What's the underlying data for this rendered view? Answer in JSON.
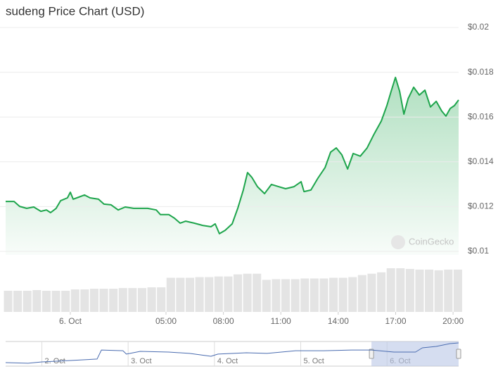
{
  "chart_data": [
    {
      "type": "line",
      "title": "sudeng Price Chart (USD)",
      "watermark": "CoinGecko",
      "color": "#1ea54c",
      "grid": true,
      "x": [
        -3.38,
        -2.94,
        -2.65,
        -2.28,
        -1.91,
        -1.54,
        -1.25,
        -1.03,
        -0.74,
        -0.51,
        -0.15,
        0,
        0.15,
        0.44,
        0.74,
        1.03,
        1.47,
        1.76,
        2.13,
        2.5,
        2.87,
        3.31,
        4.04,
        4.49,
        4.71,
        5.15,
        5.44,
        5.74,
        6.03,
        6.47,
        6.91,
        7.35,
        7.57,
        7.79,
        8.09,
        8.46,
        8.75,
        9.04,
        9.26,
        9.49,
        9.78,
        10.15,
        10.51,
        10.88,
        11.25,
        11.69,
        12.06,
        12.21,
        12.57,
        12.94,
        13.31,
        13.6,
        13.9,
        14.19,
        14.49,
        14.78,
        15.15,
        15.51,
        15.88,
        16.25,
        16.54,
        16.76,
        16.99,
        17.21,
        17.43,
        17.65,
        17.94,
        18.24,
        18.53,
        18.82,
        19.12,
        19.41,
        19.63,
        19.85,
        20.07,
        20.29
      ],
      "values": [
        0.01223,
        0.01223,
        0.01201,
        0.01192,
        0.01198,
        0.01179,
        0.01185,
        0.01173,
        0.01192,
        0.01226,
        0.01239,
        0.01264,
        0.01233,
        0.01242,
        0.01252,
        0.01239,
        0.01233,
        0.01211,
        0.01208,
        0.01185,
        0.01198,
        0.01192,
        0.01192,
        0.01185,
        0.01164,
        0.01164,
        0.01148,
        0.01126,
        0.01135,
        0.01126,
        0.01116,
        0.0111,
        0.01123,
        0.01079,
        0.01094,
        0.01123,
        0.01192,
        0.01274,
        0.01352,
        0.0133,
        0.01289,
        0.01258,
        0.01299,
        0.01289,
        0.0128,
        0.01289,
        0.01311,
        0.01267,
        0.01274,
        0.01327,
        0.01374,
        0.01443,
        0.01462,
        0.01431,
        0.01368,
        0.01437,
        0.01425,
        0.01462,
        0.01525,
        0.01582,
        0.01651,
        0.01714,
        0.01777,
        0.01714,
        0.01613,
        0.01682,
        0.01733,
        0.01698,
        0.0172,
        0.01645,
        0.0167,
        0.01626,
        0.01604,
        0.01638,
        0.01651,
        0.01676
      ],
      "xlim": [
        -3.38,
        20.29
      ],
      "xticks": [
        {
          "value": 0,
          "label": "6. Oct"
        },
        {
          "value": 5,
          "label": "05:00"
        },
        {
          "value": 8,
          "label": "08:00"
        },
        {
          "value": 11,
          "label": "11:00"
        },
        {
          "value": 14,
          "label": "14:00"
        },
        {
          "value": 17,
          "label": "17:00"
        },
        {
          "value": 20,
          "label": "20:00"
        }
      ],
      "ylim": [
        0.01,
        0.02
      ],
      "yticks": [
        {
          "value": 0.01,
          "label": "$0.01"
        },
        {
          "value": 0.012,
          "label": "$0.012"
        },
        {
          "value": 0.014,
          "label": "$0.014"
        },
        {
          "value": 0.016,
          "label": "$0.016"
        },
        {
          "value": 0.018,
          "label": "$0.018"
        },
        {
          "value": 0.02,
          "label": "$0.02"
        }
      ]
    },
    {
      "type": "bar",
      "color": "#e4e4e4",
      "x": [
        -3.25,
        -2.75,
        -2.25,
        -1.75,
        -1.25,
        -0.75,
        -0.25,
        0.25,
        0.75,
        1.25,
        1.75,
        2.25,
        2.75,
        3.25,
        3.75,
        4.25,
        4.75,
        5.25,
        5.75,
        6.25,
        6.75,
        7.25,
        7.75,
        8.25,
        8.75,
        9.25,
        9.75,
        10.25,
        10.75,
        11.25,
        11.75,
        12.25,
        12.75,
        13.25,
        13.75,
        14.25,
        14.75,
        15.25,
        15.75,
        16.25,
        16.75,
        17.25,
        17.75,
        18.25,
        18.75,
        19.25,
        19.75,
        20.25
      ],
      "values": [
        31,
        31,
        31,
        32,
        31,
        31,
        31,
        33,
        33,
        34,
        34,
        34,
        35,
        35,
        35,
        36,
        36,
        50,
        50,
        50,
        51,
        51,
        52,
        52,
        55,
        56,
        56,
        47,
        48,
        48,
        48,
        49,
        49,
        49,
        50,
        50,
        51,
        54,
        56,
        58,
        64,
        64,
        63,
        62,
        62,
        61,
        62,
        62
      ],
      "xlim": [
        -3.38,
        20.29
      ],
      "ylim": [
        0,
        65
      ]
    },
    {
      "type": "line",
      "color": "#4a6cb0",
      "selected_range": [
        3.82,
        4.83
      ],
      "x": [
        -0.42,
        -0.16,
        0,
        0.33,
        0.64,
        0.69,
        0.94,
        0.98,
        1.14,
        1.47,
        1.71,
        1.96,
        2.04,
        2.37,
        2.61,
        2.94,
        3.27,
        3.59,
        3.82,
        4.08,
        4.33,
        4.41,
        4.57,
        4.73,
        4.83
      ],
      "values": [
        0.0046,
        0.0041,
        0.0051,
        0.0061,
        0.0072,
        0.0138,
        0.0133,
        0.0108,
        0.0128,
        0.0123,
        0.0113,
        0.0092,
        0.0108,
        0.0118,
        0.0113,
        0.0133,
        0.0133,
        0.0138,
        0.0138,
        0.0123,
        0.0123,
        0.0154,
        0.0164,
        0.0185,
        0.019
      ],
      "xlim": [
        -0.42,
        4.83
      ],
      "ylim": [
        0.002,
        0.019
      ],
      "xticks": [
        {
          "value": 0,
          "label": "2. Oct"
        },
        {
          "value": 1,
          "label": "3. Oct"
        },
        {
          "value": 2,
          "label": "4. Oct"
        },
        {
          "value": 3,
          "label": "5. Oct"
        },
        {
          "value": 4,
          "label": "6. Oct"
        }
      ]
    }
  ]
}
